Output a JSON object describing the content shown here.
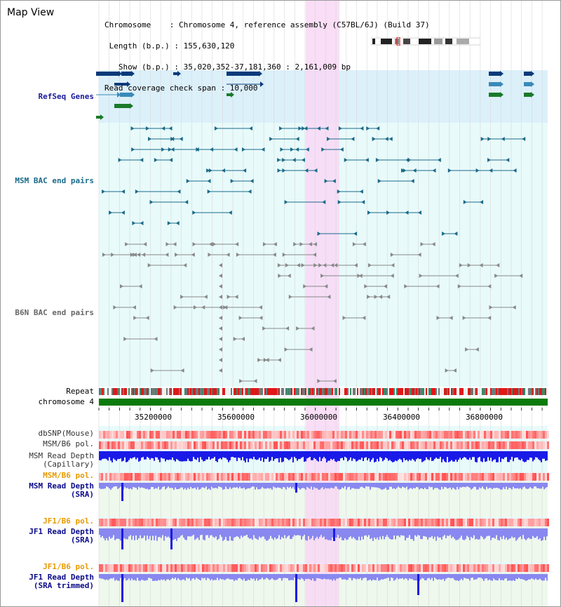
{
  "title": "Map View",
  "info": {
    "lines": [
      "Chromosome    : Chromosome 4, reference assembly (C57BL/6J) (Build 37)",
      " Length (b.p.) : 155,630,120",
      "   Show (b.p.) : 35,020,352-37,181,360 : 2,161,009 bp",
      "Read coverage check span : 10,000"
    ]
  },
  "tracks": {
    "refseq": "RefSeq Genes",
    "msm_bac": "MSM BAC end pairs",
    "b6n_bac": "B6N BAC end pairs",
    "repeat": "Repeat",
    "chromosome": "chromosome 4",
    "dbsnp": "dbSNP(Mouse)",
    "msm_b6_pol": "MSM/B6 pol.",
    "msm_depth_cap_1": "MSM Read Depth",
    "msm_depth_cap_2": "(Capillary)",
    "msm_b6_pol2": "MSM/B6 pol.",
    "msm_depth_sra_1": "MSM Read Depth",
    "msm_depth_sra_2": "(SRA)",
    "jf1_b6_pol": "JF1/B6 pol.",
    "jf1_depth_sra_1": "JF1 Read Depth",
    "jf1_depth_sra_2": "(SRA)",
    "jf1_b6_pol2": "JF1/B6 pol.",
    "jf1_depth_trim_1": "JF1 Read Depth",
    "jf1_depth_trim_2": "(SRA trimmed)"
  },
  "axis": {
    "ticks": [
      "35200000",
      "35600000",
      "36000000",
      "36400000",
      "36800000"
    ]
  },
  "colors": {
    "refseq_bg": "#dcf0fa",
    "bac_bg": "#e8fafa",
    "highlight": "#f8d8f4",
    "gene_navy": "#0a3a7a",
    "gene_blue": "#3a8ab8",
    "gene_green": "#1a7a2a",
    "msm_bac": "#1a6a8a",
    "b6n_bac": "#888888",
    "chromosome": "#0a7a0a",
    "depth_blue": "#1a1ae8",
    "depth_light": "#8888f0",
    "label_blue": "#1a1a9a",
    "label_orange": "#e89a00",
    "label_navy": "#0a0a8a"
  }
}
